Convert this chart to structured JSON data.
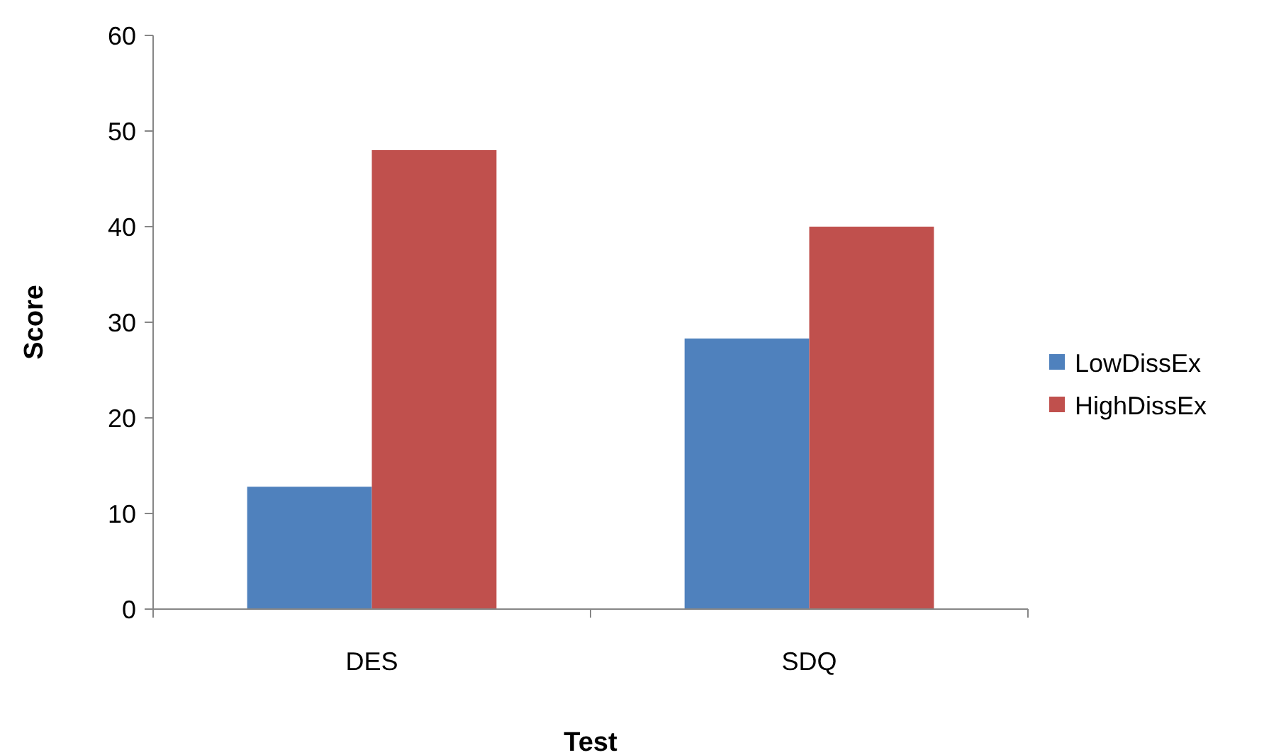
{
  "chart_data": {
    "type": "bar",
    "xlabel": "Test",
    "ylabel": "Score",
    "categories": [
      "DES",
      "SDQ"
    ],
    "series": [
      {
        "name": "LowDissEx",
        "color": "#4f81bd",
        "values": [
          12.8,
          28.3
        ]
      },
      {
        "name": "HighDissEx",
        "color": "#c0504d",
        "values": [
          48,
          40
        ]
      }
    ],
    "ylim": [
      0,
      60
    ],
    "yticks": [
      0,
      10,
      20,
      30,
      40,
      50,
      60
    ],
    "grid": false,
    "legend": "right"
  }
}
